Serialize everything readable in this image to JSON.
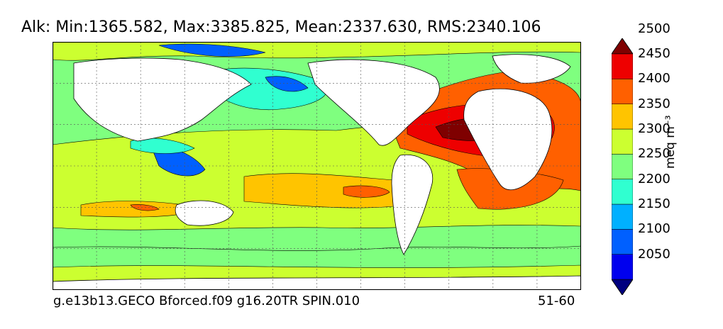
{
  "title": "Alk: Min:1365.582, Max:3385.825, Mean:2337.630, RMS:2340.106",
  "footer": {
    "run_name": "g.e13b13.GECO Bforced.f09 g16.20TR SPIN.010",
    "period": "51-60"
  },
  "colorbar": {
    "unit_label": "meq m⁻³",
    "ticks": [
      "2050",
      "2100",
      "2150",
      "2200",
      "2250",
      "2300",
      "2350",
      "2400",
      "2450",
      "2500"
    ],
    "colors": [
      "#00007f",
      "#0000ee",
      "#0060ff",
      "#00b0ff",
      "#30ffd0",
      "#7fff7f",
      "#ccff30",
      "#ffc400",
      "#ff6000",
      "#ee0000",
      "#7f0000"
    ],
    "extend": "both"
  },
  "map": {
    "projection": "global lat-lon",
    "land_color": "#ffffff",
    "grid": "dashed",
    "contour_lines": true
  }
}
